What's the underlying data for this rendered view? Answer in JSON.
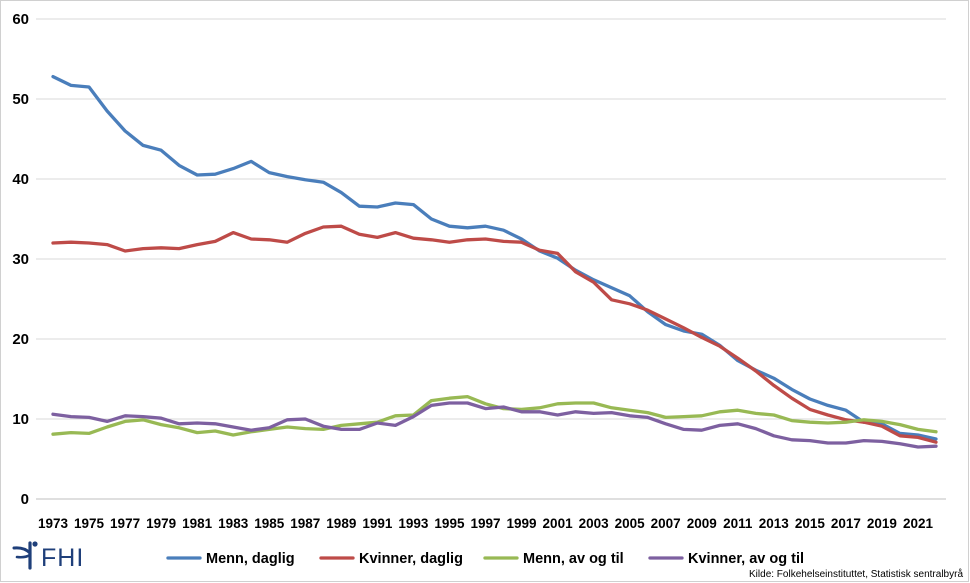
{
  "chart_data": {
    "type": "line",
    "title": "",
    "xlabel": "",
    "ylabel": "",
    "ylim": [
      0,
      60
    ],
    "yticks": [
      0,
      10,
      20,
      30,
      40,
      50,
      60
    ],
    "grid": "horizontal",
    "legend": "bottom",
    "x": [
      1973,
      1974,
      1975,
      1976,
      1977,
      1978,
      1979,
      1980,
      1981,
      1982,
      1983,
      1984,
      1985,
      1986,
      1987,
      1988,
      1989,
      1990,
      1991,
      1992,
      1993,
      1994,
      1995,
      1996,
      1997,
      1998,
      1999,
      2000,
      2001,
      2002,
      2003,
      2004,
      2005,
      2006,
      2007,
      2008,
      2009,
      2010,
      2011,
      2012,
      2013,
      2014,
      2015,
      2016,
      2017,
      2018,
      2019,
      2020,
      2021,
      2022
    ],
    "xticks": [
      "1973",
      "1975",
      "1977",
      "1979",
      "1981",
      "1983",
      "1985",
      "1987",
      "1989",
      "1991",
      "1993",
      "1995",
      "1997",
      "1999",
      "2001",
      "2003",
      "2005",
      "2007",
      "2009",
      "2011",
      "2013",
      "2015",
      "2017",
      "2019",
      "2021"
    ],
    "series": [
      {
        "name": "Menn, daglig",
        "color": "#4a7ebb",
        "values": [
          52.8,
          51.7,
          51.5,
          48.5,
          46.0,
          44.2,
          43.6,
          41.7,
          40.5,
          40.6,
          41.3,
          42.2,
          40.8,
          40.3,
          39.9,
          39.6,
          38.3,
          36.6,
          36.5,
          37.0,
          36.8,
          35.0,
          34.1,
          33.9,
          34.1,
          33.6,
          32.5,
          31.0,
          30.1,
          28.6,
          27.4,
          26.4,
          25.4,
          23.4,
          21.8,
          21.0,
          20.6,
          19.2,
          17.3,
          16.1,
          15.1,
          13.7,
          12.5,
          11.7,
          11.1,
          9.6,
          9.4,
          8.2,
          8.0,
          7.5
        ]
      },
      {
        "name": "Kvinner, daglig",
        "color": "#be4b48",
        "values": [
          32.0,
          32.1,
          32.0,
          31.8,
          31.0,
          31.3,
          31.4,
          31.3,
          31.8,
          32.2,
          33.3,
          32.5,
          32.4,
          32.1,
          33.2,
          34.0,
          34.1,
          33.1,
          32.7,
          33.3,
          32.6,
          32.4,
          32.1,
          32.4,
          32.5,
          32.2,
          32.1,
          31.1,
          30.7,
          28.4,
          27.1,
          24.9,
          24.4,
          23.6,
          22.5,
          21.4,
          20.2,
          19.1,
          17.6,
          16.0,
          14.2,
          12.6,
          11.2,
          10.5,
          9.9,
          9.6,
          9.1,
          7.9,
          7.7,
          7.1
        ]
      },
      {
        "name": "Menn, av og til",
        "color": "#98b954",
        "values": [
          8.1,
          8.3,
          8.2,
          9.0,
          9.7,
          9.9,
          9.3,
          8.9,
          8.3,
          8.5,
          8.0,
          8.4,
          8.7,
          9.0,
          8.8,
          8.7,
          9.2,
          9.4,
          9.6,
          10.4,
          10.5,
          12.3,
          12.6,
          12.8,
          11.9,
          11.3,
          11.2,
          11.4,
          11.9,
          12.0,
          12.0,
          11.4,
          11.1,
          10.8,
          10.2,
          10.3,
          10.4,
          10.9,
          11.1,
          10.7,
          10.5,
          9.8,
          9.6,
          9.5,
          9.6,
          9.9,
          9.7,
          9.3,
          8.7,
          8.4
        ]
      },
      {
        "name": "Kvinner, av og til",
        "color": "#7d60a0",
        "values": [
          10.6,
          10.3,
          10.2,
          9.7,
          10.4,
          10.3,
          10.1,
          9.4,
          9.5,
          9.4,
          9.0,
          8.6,
          8.9,
          9.9,
          10.0,
          9.1,
          8.7,
          8.7,
          9.5,
          9.2,
          10.3,
          11.7,
          12.0,
          12.0,
          11.3,
          11.5,
          10.9,
          10.9,
          10.5,
          10.9,
          10.7,
          10.8,
          10.4,
          10.2,
          9.4,
          8.7,
          8.6,
          9.2,
          9.4,
          8.8,
          7.9,
          7.4,
          7.3,
          7.0,
          7.0,
          7.3,
          7.2,
          6.9,
          6.5,
          6.6
        ]
      }
    ]
  },
  "footer": {
    "logo_text": "FHI",
    "source": "Kilde: Folkehelseinstituttet, Statistisk sentralbyrå"
  }
}
